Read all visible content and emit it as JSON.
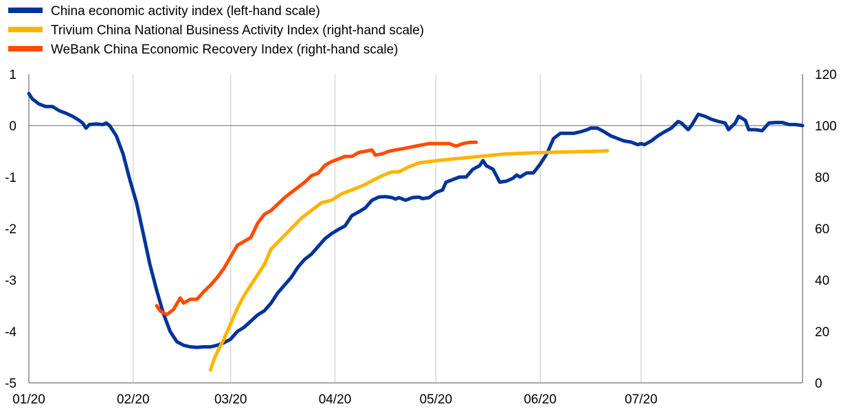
{
  "chart_data": {
    "type": "line",
    "title": "",
    "xlabel": "",
    "ylabel": "",
    "x_tick_labels": [
      "01/20",
      "02/20",
      "03/20",
      "04/20",
      "05/20",
      "06/20",
      "07/20"
    ],
    "left_axis": {
      "ticks": [
        "1",
        "0",
        "-1",
        "-2",
        "-3",
        "-4",
        "-5"
      ],
      "ylim": [
        -5,
        1
      ]
    },
    "right_axis": {
      "ticks": [
        "120",
        "100",
        "80",
        "60",
        "40",
        "20",
        "0"
      ],
      "ylim": [
        0,
        120
      ]
    },
    "grid": {
      "vertical": true,
      "zero_line": true
    },
    "legend_position": "top-left",
    "series": [
      {
        "name": "China economic activity index (left-hand scale)",
        "axis": "left",
        "color": "#003399",
        "points": [
          [
            "2020-01-01",
            0.62
          ],
          [
            "2020-01-02",
            0.52
          ],
          [
            "2020-01-04",
            0.42
          ],
          [
            "2020-01-06",
            0.37
          ],
          [
            "2020-01-08",
            0.37
          ],
          [
            "2020-01-10",
            0.29
          ],
          [
            "2020-01-12",
            0.24
          ],
          [
            "2020-01-14",
            0.18
          ],
          [
            "2020-01-16",
            0.1
          ],
          [
            "2020-01-17",
            0.05
          ],
          [
            "2020-01-18",
            -0.05
          ],
          [
            "2020-01-19",
            0.02
          ],
          [
            "2020-01-21",
            0.03
          ],
          [
            "2020-01-23",
            0.02
          ],
          [
            "2020-01-24",
            0.05
          ],
          [
            "2020-01-25",
            0.0
          ],
          [
            "2020-01-27",
            -0.2
          ],
          [
            "2020-01-29",
            -0.55
          ],
          [
            "2020-01-31",
            -1.05
          ],
          [
            "2020-02-02",
            -1.5
          ],
          [
            "2020-02-04",
            -2.1
          ],
          [
            "2020-02-06",
            -2.7
          ],
          [
            "2020-02-08",
            -3.2
          ],
          [
            "2020-02-10",
            -3.65
          ],
          [
            "2020-02-12",
            -4.0
          ],
          [
            "2020-02-14",
            -4.2
          ],
          [
            "2020-02-16",
            -4.27
          ],
          [
            "2020-02-18",
            -4.3
          ],
          [
            "2020-02-20",
            -4.31
          ],
          [
            "2020-02-22",
            -4.3
          ],
          [
            "2020-02-24",
            -4.3
          ],
          [
            "2020-02-26",
            -4.27
          ],
          [
            "2020-02-28",
            -4.22
          ],
          [
            "2020-03-01",
            -4.15
          ],
          [
            "2020-03-03",
            -4.0
          ],
          [
            "2020-03-05",
            -3.92
          ],
          [
            "2020-03-07",
            -3.8
          ],
          [
            "2020-03-09",
            -3.68
          ],
          [
            "2020-03-11",
            -3.6
          ],
          [
            "2020-03-13",
            -3.45
          ],
          [
            "2020-03-15",
            -3.25
          ],
          [
            "2020-03-17",
            -3.1
          ],
          [
            "2020-03-19",
            -2.95
          ],
          [
            "2020-03-21",
            -2.75
          ],
          [
            "2020-03-23",
            -2.6
          ],
          [
            "2020-03-25",
            -2.5
          ],
          [
            "2020-03-27",
            -2.35
          ],
          [
            "2020-03-29",
            -2.2
          ],
          [
            "2020-03-31",
            -2.1
          ],
          [
            "2020-04-02",
            -2.02
          ],
          [
            "2020-04-04",
            -1.95
          ],
          [
            "2020-04-06",
            -1.75
          ],
          [
            "2020-04-08",
            -1.68
          ],
          [
            "2020-04-10",
            -1.6
          ],
          [
            "2020-04-12",
            -1.45
          ],
          [
            "2020-04-14",
            -1.39
          ],
          [
            "2020-04-16",
            -1.38
          ],
          [
            "2020-04-18",
            -1.4
          ],
          [
            "2020-04-19",
            -1.43
          ],
          [
            "2020-04-20",
            -1.4
          ],
          [
            "2020-04-22",
            -1.45
          ],
          [
            "2020-04-24",
            -1.4
          ],
          [
            "2020-04-26",
            -1.39
          ],
          [
            "2020-04-27",
            -1.42
          ],
          [
            "2020-04-29",
            -1.4
          ],
          [
            "2020-05-01",
            -1.3
          ],
          [
            "2020-05-03",
            -1.25
          ],
          [
            "2020-05-04",
            -1.1
          ],
          [
            "2020-05-06",
            -1.05
          ],
          [
            "2020-05-08",
            -1.0
          ],
          [
            "2020-05-10",
            -1.0
          ],
          [
            "2020-05-12",
            -0.85
          ],
          [
            "2020-05-14",
            -0.78
          ],
          [
            "2020-05-15",
            -0.68
          ],
          [
            "2020-05-16",
            -0.78
          ],
          [
            "2020-05-18",
            -0.85
          ],
          [
            "2020-05-20",
            -1.1
          ],
          [
            "2020-05-22",
            -1.08
          ],
          [
            "2020-05-24",
            -1.02
          ],
          [
            "2020-05-25",
            -0.96
          ],
          [
            "2020-05-26",
            -1.0
          ],
          [
            "2020-05-28",
            -0.92
          ],
          [
            "2020-05-30",
            -0.92
          ],
          [
            "2020-06-01",
            -0.75
          ],
          [
            "2020-06-03",
            -0.55
          ],
          [
            "2020-06-05",
            -0.25
          ],
          [
            "2020-06-07",
            -0.15
          ],
          [
            "2020-06-09",
            -0.15
          ],
          [
            "2020-06-11",
            -0.15
          ],
          [
            "2020-06-13",
            -0.12
          ],
          [
            "2020-06-15",
            -0.08
          ],
          [
            "2020-06-16",
            -0.05
          ],
          [
            "2020-06-18",
            -0.05
          ],
          [
            "2020-06-20",
            -0.12
          ],
          [
            "2020-06-22",
            -0.2
          ],
          [
            "2020-06-24",
            -0.25
          ],
          [
            "2020-06-26",
            -0.3
          ],
          [
            "2020-06-28",
            -0.32
          ],
          [
            "2020-06-30",
            -0.37
          ],
          [
            "2020-07-01",
            -0.35
          ],
          [
            "2020-07-02",
            -0.37
          ],
          [
            "2020-07-04",
            -0.3
          ],
          [
            "2020-07-06",
            -0.2
          ],
          [
            "2020-07-08",
            -0.12
          ],
          [
            "2020-07-10",
            -0.05
          ],
          [
            "2020-07-12",
            0.08
          ],
          [
            "2020-07-13",
            0.05
          ],
          [
            "2020-07-15",
            -0.08
          ],
          [
            "2020-07-16",
            0.0
          ],
          [
            "2020-07-18",
            0.22
          ],
          [
            "2020-07-20",
            0.18
          ],
          [
            "2020-07-22",
            0.12
          ],
          [
            "2020-07-24",
            0.08
          ],
          [
            "2020-07-26",
            0.05
          ],
          [
            "2020-07-27",
            -0.08
          ],
          [
            "2020-07-29",
            0.05
          ],
          [
            "2020-07-30",
            0.18
          ],
          [
            "2020-08-01",
            0.1
          ],
          [
            "2020-08-02",
            -0.08
          ],
          [
            "2020-08-04",
            -0.08
          ],
          [
            "2020-08-06",
            -0.1
          ],
          [
            "2020-08-08",
            0.05
          ],
          [
            "2020-08-10",
            0.06
          ],
          [
            "2020-08-12",
            0.06
          ],
          [
            "2020-08-14",
            0.02
          ],
          [
            "2020-08-16",
            0.02
          ],
          [
            "2020-08-18",
            0.0
          ]
        ]
      },
      {
        "name": "Trivium China National Business Activity Index (right-hand scale)",
        "axis": "right",
        "color": "#ffb400",
        "points": [
          [
            "2020-02-24",
            5
          ],
          [
            "2020-02-25",
            9
          ],
          [
            "2020-02-26",
            12
          ],
          [
            "2020-02-28",
            17
          ],
          [
            "2020-03-01",
            23
          ],
          [
            "2020-03-03",
            29
          ],
          [
            "2020-03-05",
            34
          ],
          [
            "2020-03-08",
            40
          ],
          [
            "2020-03-11",
            46
          ],
          [
            "2020-03-13",
            52
          ],
          [
            "2020-03-16",
            56
          ],
          [
            "2020-03-19",
            60
          ],
          [
            "2020-03-22",
            64
          ],
          [
            "2020-03-25",
            67
          ],
          [
            "2020-03-28",
            70
          ],
          [
            "2020-03-31",
            71
          ],
          [
            "2020-04-03",
            73.5
          ],
          [
            "2020-04-06",
            75
          ],
          [
            "2020-04-09",
            76.5
          ],
          [
            "2020-04-12",
            78.5
          ],
          [
            "2020-04-15",
            80.5
          ],
          [
            "2020-04-18",
            82
          ],
          [
            "2020-04-20",
            82
          ],
          [
            "2020-04-23",
            84
          ],
          [
            "2020-04-26",
            85.5
          ],
          [
            "2020-04-29",
            86
          ],
          [
            "2020-05-02",
            86.5
          ],
          [
            "2020-05-06",
            87
          ],
          [
            "2020-05-10",
            87.5
          ],
          [
            "2020-05-14",
            88
          ],
          [
            "2020-05-18",
            88.5
          ],
          [
            "2020-05-22",
            89
          ],
          [
            "2020-05-26",
            89.2
          ],
          [
            "2020-05-30",
            89.4
          ],
          [
            "2020-06-04",
            89.6
          ],
          [
            "2020-06-10",
            89.8
          ],
          [
            "2020-06-17",
            90
          ],
          [
            "2020-06-21",
            90.2
          ]
        ]
      },
      {
        "name": "WeBank China Economic Recovery Index (right-hand scale)",
        "axis": "right",
        "color": "#ff4b00",
        "points": [
          [
            "2020-02-08",
            30
          ],
          [
            "2020-02-09",
            28
          ],
          [
            "2020-02-11",
            26.5
          ],
          [
            "2020-02-13",
            28.5
          ],
          [
            "2020-02-15",
            33
          ],
          [
            "2020-02-16",
            31
          ],
          [
            "2020-02-18",
            32.5
          ],
          [
            "2020-02-20",
            32.5
          ],
          [
            "2020-02-22",
            35.5
          ],
          [
            "2020-02-24",
            38
          ],
          [
            "2020-02-26",
            41
          ],
          [
            "2020-02-28",
            44.5
          ],
          [
            "2020-03-01",
            49
          ],
          [
            "2020-03-03",
            53.5
          ],
          [
            "2020-03-05",
            55
          ],
          [
            "2020-03-07",
            56.5
          ],
          [
            "2020-03-09",
            62
          ],
          [
            "2020-03-11",
            65.5
          ],
          [
            "2020-03-13",
            67
          ],
          [
            "2020-03-15",
            69.5
          ],
          [
            "2020-03-17",
            72
          ],
          [
            "2020-03-19",
            74
          ],
          [
            "2020-03-21",
            76
          ],
          [
            "2020-03-23",
            78
          ],
          [
            "2020-03-25",
            80.5
          ],
          [
            "2020-03-27",
            81.5
          ],
          [
            "2020-03-29",
            84.5
          ],
          [
            "2020-03-31",
            86
          ],
          [
            "2020-04-02",
            87
          ],
          [
            "2020-04-04",
            88
          ],
          [
            "2020-04-06",
            88
          ],
          [
            "2020-04-08",
            89.5
          ],
          [
            "2020-04-10",
            90
          ],
          [
            "2020-04-12",
            90.5
          ],
          [
            "2020-04-13",
            88.5
          ],
          [
            "2020-04-15",
            89
          ],
          [
            "2020-04-17",
            90
          ],
          [
            "2020-04-19",
            90.5
          ],
          [
            "2020-04-21",
            91
          ],
          [
            "2020-04-23",
            91.5
          ],
          [
            "2020-04-25",
            92
          ],
          [
            "2020-04-27",
            92.5
          ],
          [
            "2020-04-29",
            93
          ],
          [
            "2020-05-01",
            93
          ],
          [
            "2020-05-03",
            93
          ],
          [
            "2020-05-05",
            93
          ],
          [
            "2020-05-07",
            92
          ],
          [
            "2020-05-09",
            93
          ],
          [
            "2020-05-11",
            93.5
          ],
          [
            "2020-05-13",
            93.5
          ]
        ]
      }
    ]
  }
}
